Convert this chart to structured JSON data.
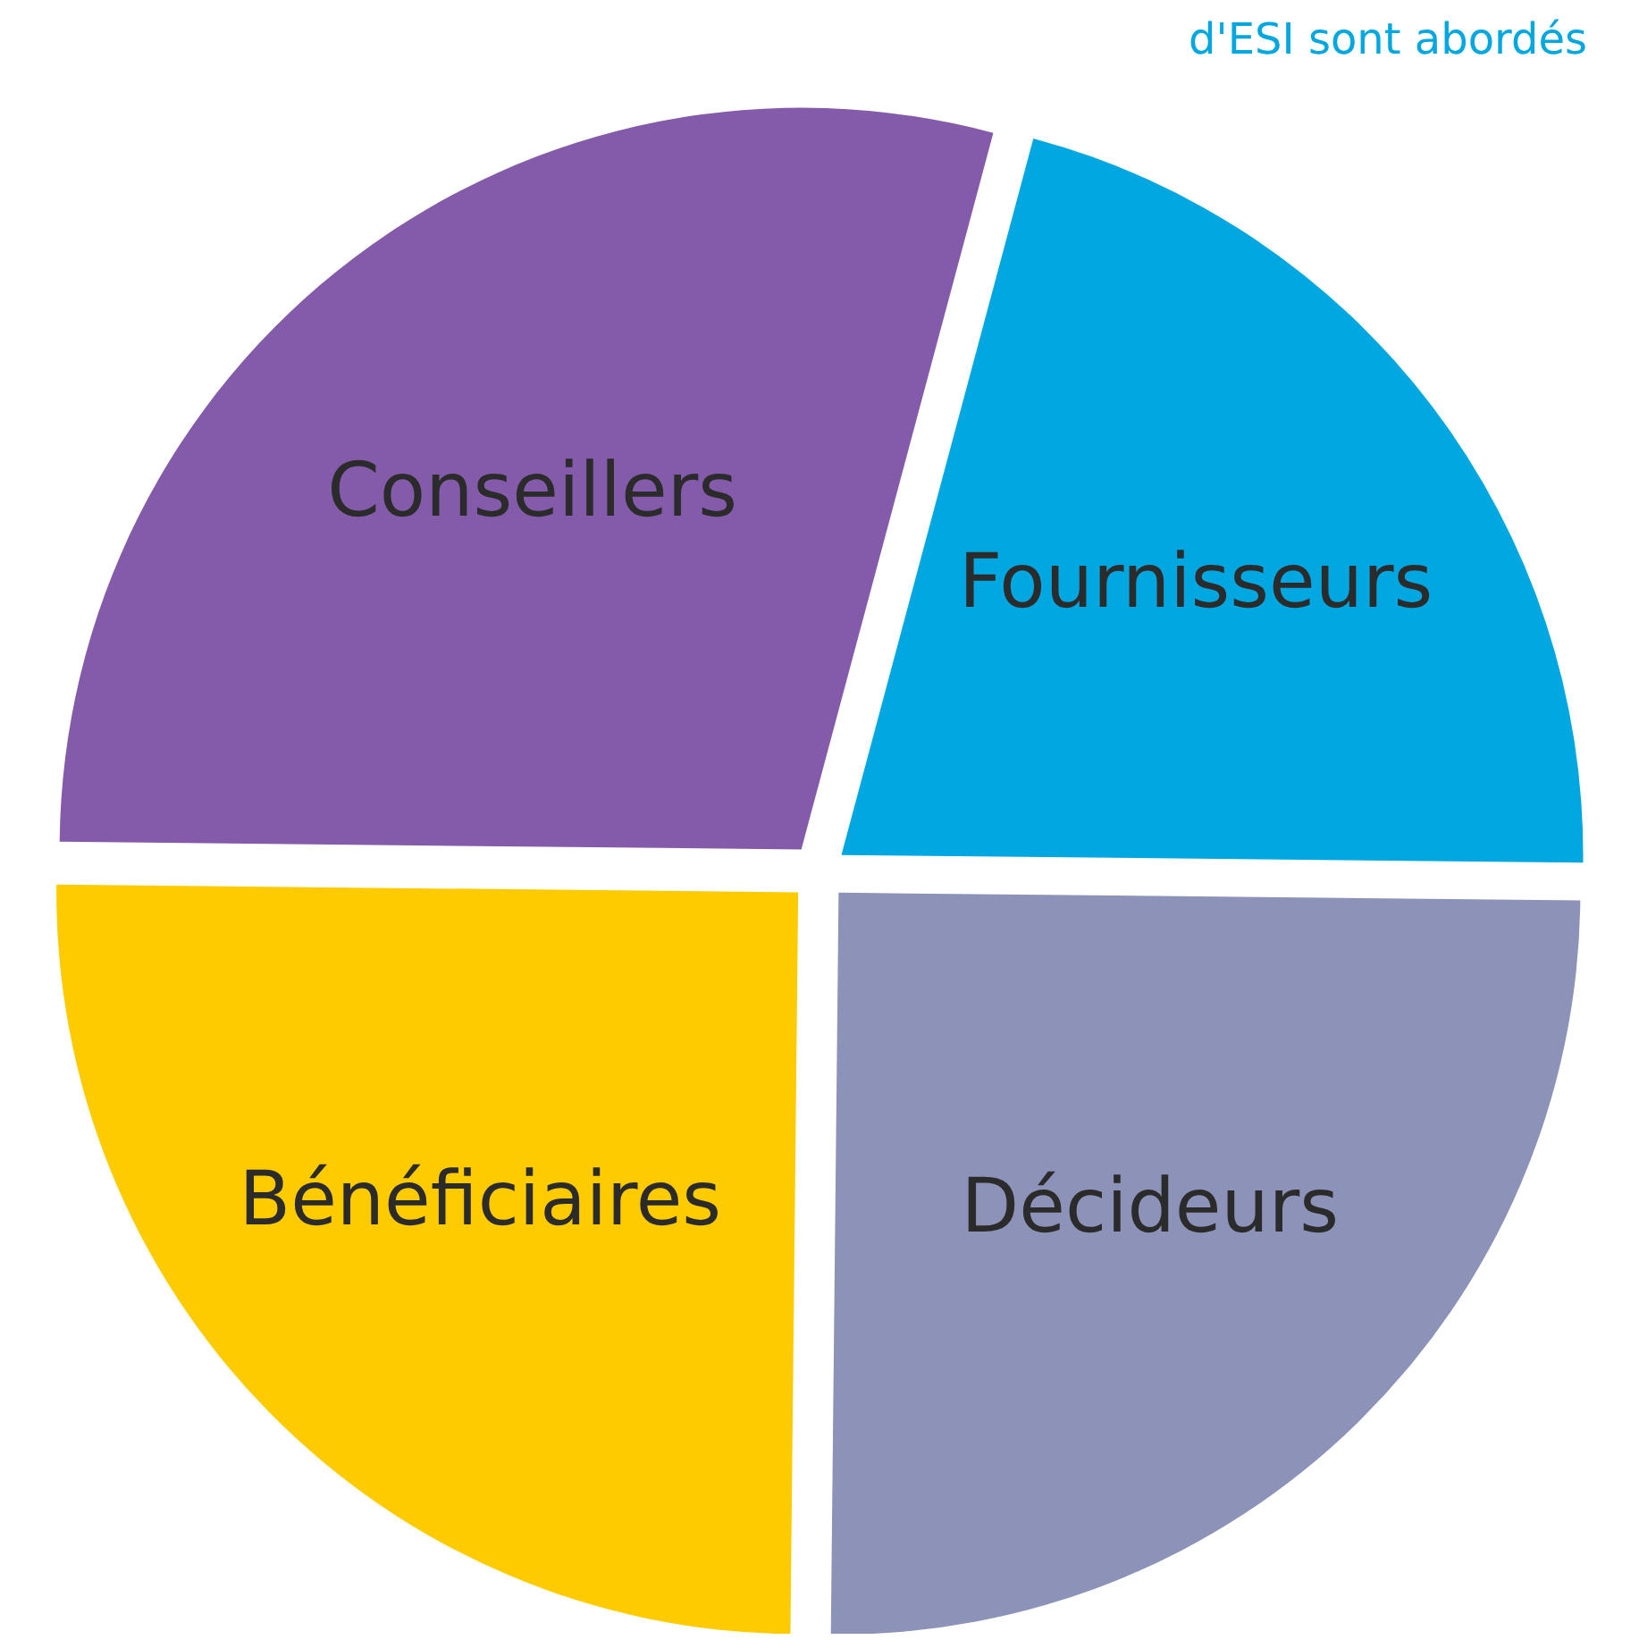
{
  "chart_data": {
    "type": "pie",
    "categories": [
      "Fournisseurs",
      "Décideurs",
      "Bénéficiaires",
      "Conseillers"
    ],
    "values": [
      21,
      25,
      25,
      29
    ],
    "colors": [
      "#00a7e1",
      "#8c92b8",
      "#fecb00",
      "#845bab"
    ],
    "annotations": [
      "d'ESI sont abordés"
    ]
  }
}
